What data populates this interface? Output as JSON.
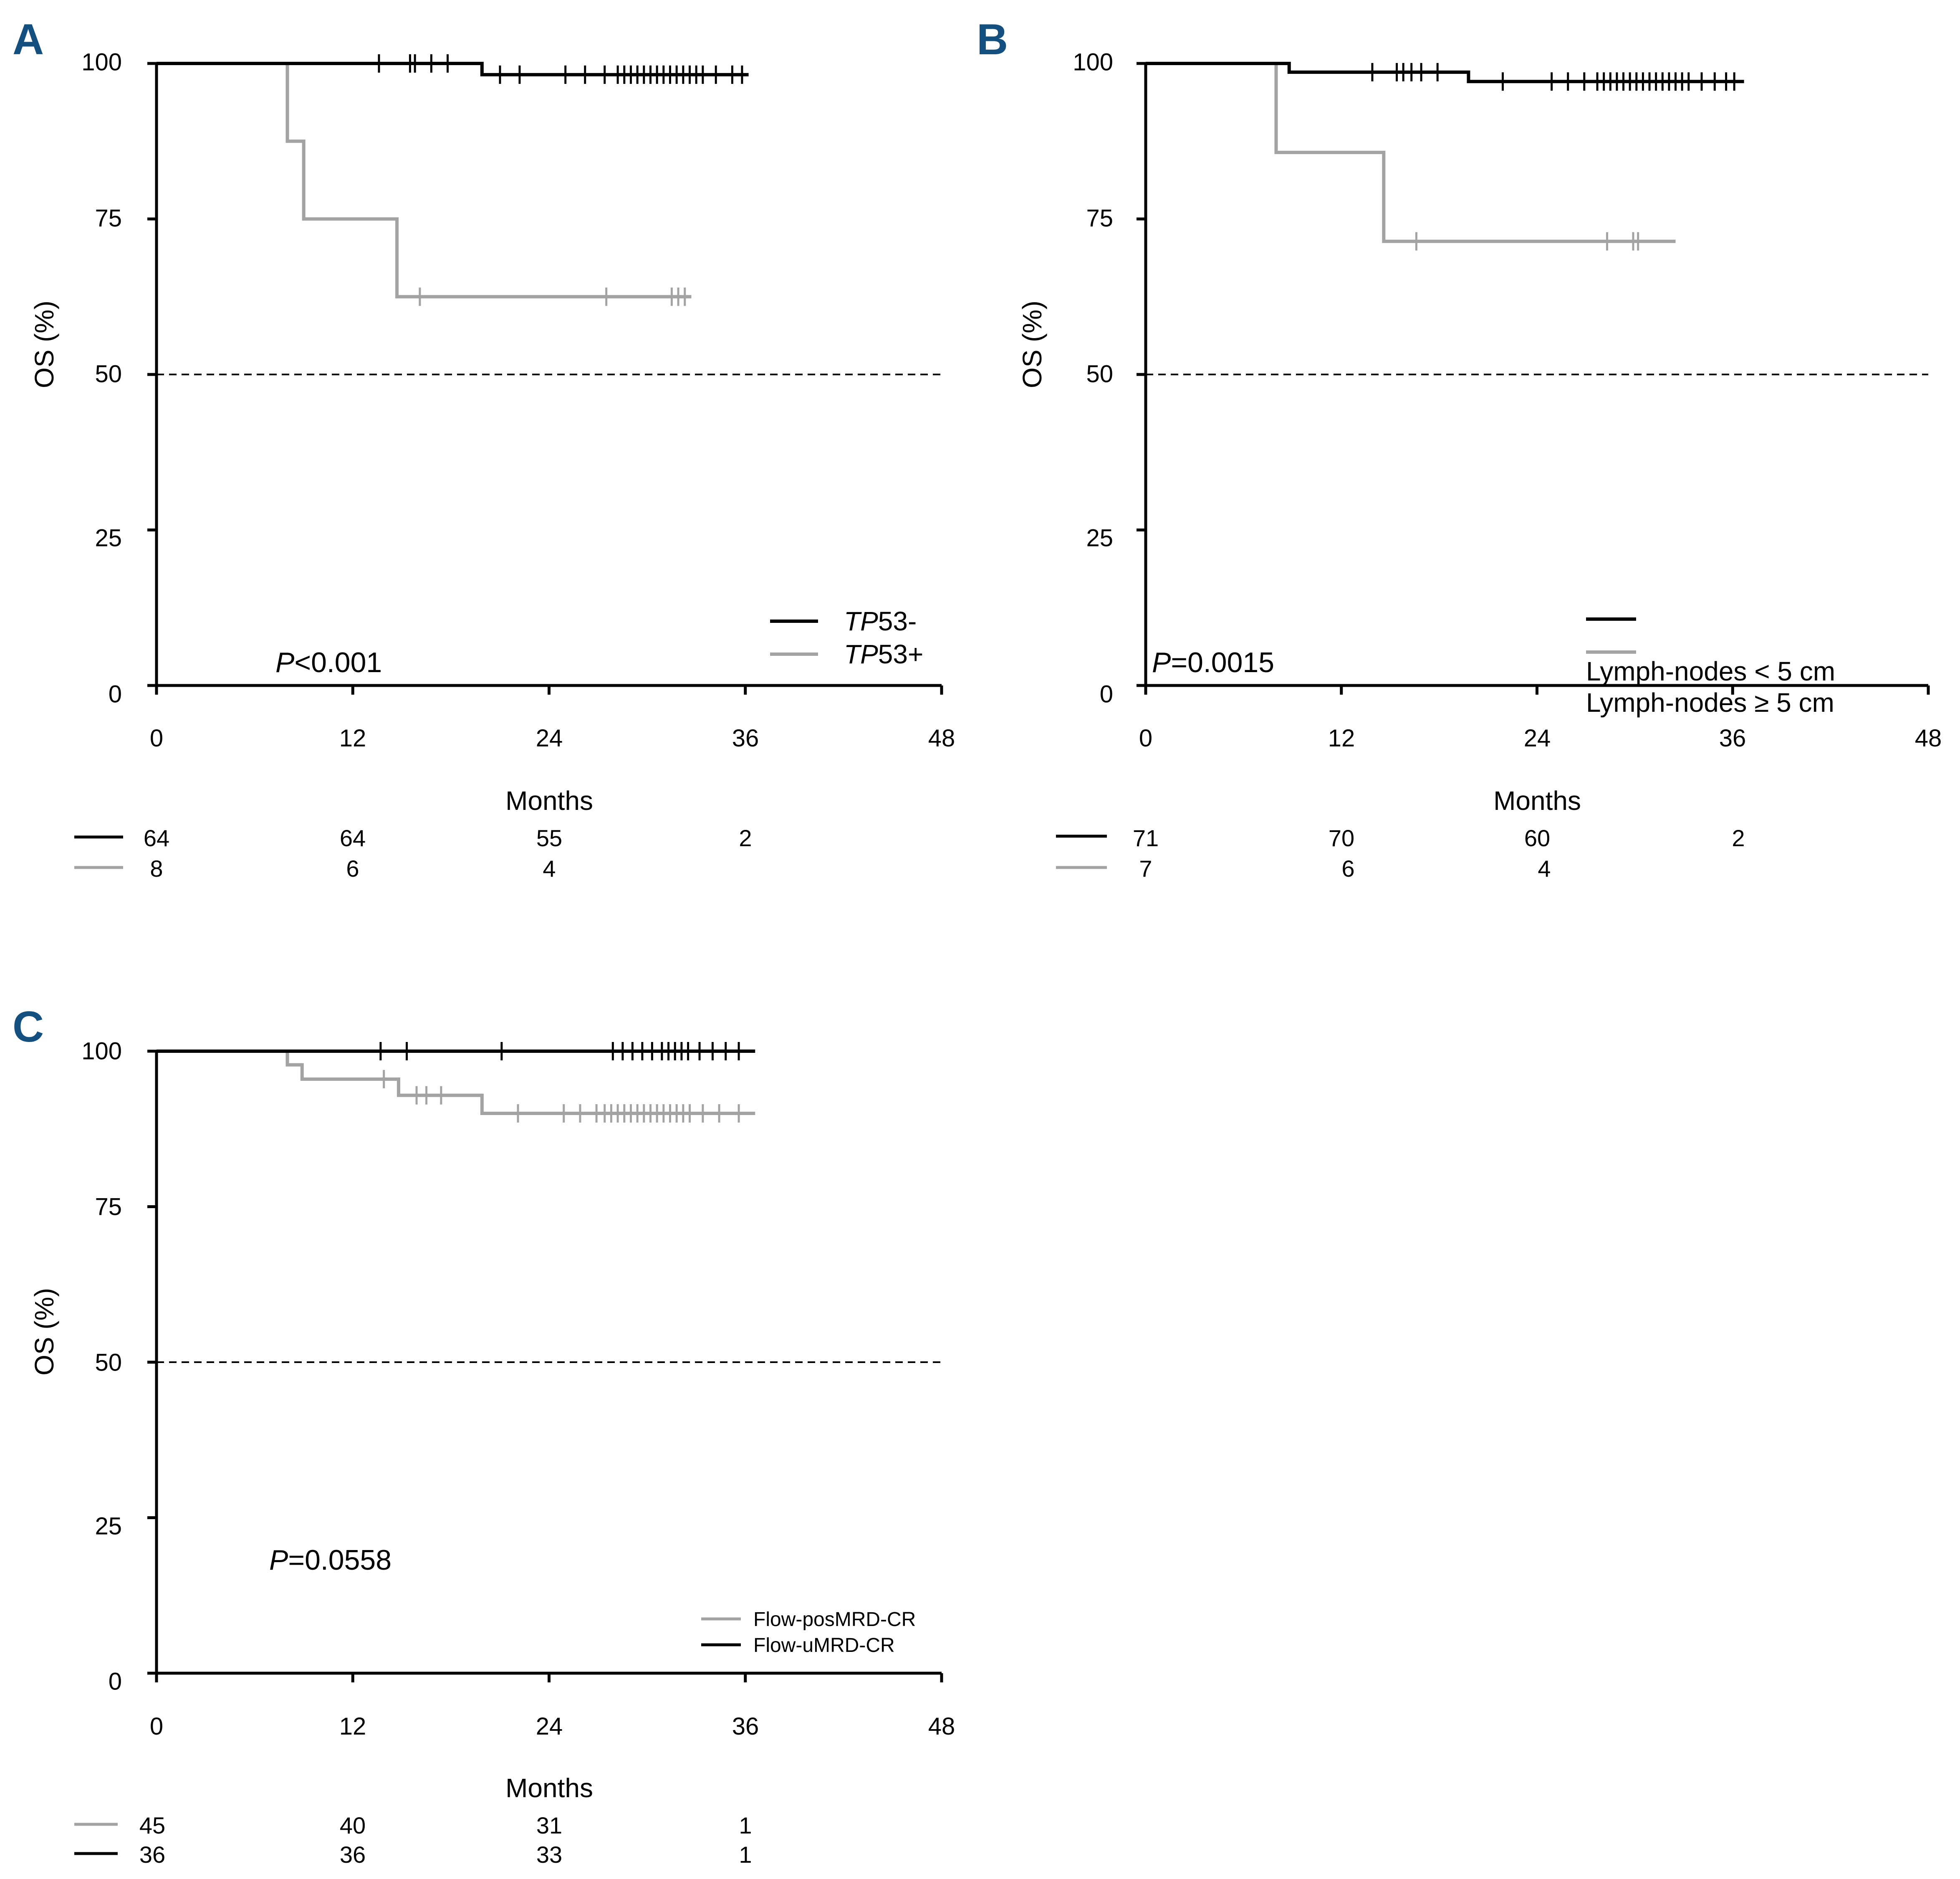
{
  "colors": {
    "black_curve": "#000000",
    "gray_curve": "#a3a3a3",
    "panel_label": "#14507f"
  },
  "axes": {
    "y_title": "OS (%)",
    "x_title": "Months",
    "y_ticks": [
      "0",
      "25",
      "50",
      "75",
      "100"
    ],
    "x_ticks": [
      "0",
      "12",
      "24",
      "36",
      "48"
    ]
  },
  "chart_data": [
    {
      "panel": "A",
      "type": "line",
      "subtype": "kaplan-meier",
      "title": "",
      "xlabel": "Months",
      "ylabel": "OS (%)",
      "xlim": [
        0,
        48
      ],
      "ylim": [
        0,
        100
      ],
      "x_ticks": [
        0,
        12,
        24,
        36,
        48
      ],
      "y_ticks": [
        0,
        25,
        50,
        75,
        100
      ],
      "reference_line_y": 50,
      "legend_position": "bottom-right",
      "p_value": {
        "prefix": "P",
        "text": "<0.001"
      },
      "series": [
        {
          "name_italic": "TP",
          "name_rest": "53-",
          "color": "#000000",
          "steps": [
            [
              0,
              100
            ],
            [
              19.9,
              98.2
            ],
            [
              36.2,
              98.2
            ]
          ],
          "censored": [
            13.6,
            15.5,
            15.8,
            16.8,
            17.8,
            21,
            22.2,
            25,
            26.2,
            27.4,
            28.2,
            28.6,
            29,
            29.4,
            29.8,
            30.2,
            30.6,
            31,
            31.4,
            31.8,
            32.2,
            32.6,
            33,
            33.4,
            34.2,
            35.2,
            35.8
          ]
        },
        {
          "name_italic": "TP",
          "name_rest": "53+",
          "color": "#a3a3a3",
          "steps": [
            [
              0,
              100
            ],
            [
              8,
              87.5
            ],
            [
              9,
              75
            ],
            [
              14.7,
              62.5
            ],
            [
              32.7,
              62.5
            ]
          ],
          "censored": [
            16.1,
            27.5,
            31.5,
            31.9,
            32.3
          ]
        }
      ],
      "risk_table": {
        "times": [
          0,
          12,
          24,
          36
        ],
        "rows": [
          {
            "series": 0,
            "counts": [
              "64",
              "64",
              "55",
              "2"
            ]
          },
          {
            "series": 1,
            "counts": [
              "8",
              "6",
              "4",
              ""
            ]
          }
        ]
      }
    },
    {
      "panel": "B",
      "type": "line",
      "subtype": "kaplan-meier",
      "title": "",
      "xlabel": "Months",
      "ylabel": "OS (%)",
      "xlim": [
        0,
        48
      ],
      "ylim": [
        0,
        100
      ],
      "x_ticks": [
        0,
        12,
        24,
        36,
        48
      ],
      "y_ticks": [
        0,
        25,
        50,
        75,
        100
      ],
      "reference_line_y": 50,
      "legend_position": "bottom-right",
      "p_value": {
        "prefix": "P",
        "text": "=0.0015"
      },
      "series": [
        {
          "name": "Lymph-nodes < 5 cm",
          "color": "#000000",
          "steps": [
            [
              0,
              100
            ],
            [
              8.8,
              98.6
            ],
            [
              19.8,
              97.1
            ],
            [
              36.7,
              97.1
            ]
          ],
          "censored": [
            13.9,
            15.4,
            15.8,
            16.3,
            16.9,
            17.9,
            21.9,
            24.9,
            25.9,
            26.9,
            27.7,
            28.1,
            28.5,
            28.9,
            29.3,
            29.7,
            30.1,
            30.5,
            30.9,
            31.3,
            31.7,
            32.1,
            32.5,
            32.9,
            33.3,
            34.1,
            34.9,
            35.6,
            36.1
          ]
        },
        {
          "name": "Lymph-nodes ≥ 5 cm",
          "color": "#a3a3a3",
          "steps": [
            [
              0,
              100
            ],
            [
              8,
              85.7
            ],
            [
              14.6,
              71.4
            ],
            [
              32.5,
              71.4
            ]
          ],
          "censored": [
            16.6,
            28.3,
            29.9,
            30.2
          ]
        }
      ],
      "risk_table": {
        "times": [
          0,
          12,
          24,
          36
        ],
        "rows": [
          {
            "series": 0,
            "counts": [
              "71",
              "70",
              "60",
              "2"
            ]
          },
          {
            "series": 1,
            "counts": [
              "7",
              "6",
              "4",
              ""
            ]
          }
        ]
      }
    },
    {
      "panel": "C",
      "type": "line",
      "subtype": "kaplan-meier",
      "title": "",
      "xlabel": "Months",
      "ylabel": "OS (%)",
      "xlim": [
        0,
        48
      ],
      "ylim": [
        0,
        100
      ],
      "x_ticks": [
        0,
        12,
        24,
        36,
        48
      ],
      "y_ticks": [
        0,
        25,
        50,
        75,
        100
      ],
      "reference_line_y": 50,
      "legend_position": "bottom-right",
      "p_value": {
        "prefix": "P",
        "text": "=0.0558"
      },
      "series": [
        {
          "name": "Flow-posMRD-CR",
          "color": "#a3a3a3",
          "steps": [
            [
              0,
              100
            ],
            [
              8,
              97.8
            ],
            [
              8.9,
              95.5
            ],
            [
              14.8,
              92.9
            ],
            [
              19.9,
              90
            ],
            [
              36.6,
              90
            ]
          ],
          "censored": [
            13.9,
            15.9,
            16.5,
            17.4,
            22.1,
            24.9,
            25.9,
            26.9,
            27.4,
            27.8,
            28.2,
            28.6,
            29,
            29.4,
            29.8,
            30.2,
            30.6,
            31,
            31.4,
            31.8,
            32.2,
            32.6,
            33.4,
            34.4,
            35.6
          ]
        },
        {
          "name": "Flow-uMRD-CR",
          "color": "#000000",
          "steps": [
            [
              0,
              100
            ],
            [
              36.6,
              100
            ]
          ],
          "censored": [
            13.7,
            15.3,
            21.1,
            27.9,
            28.5,
            29.1,
            29.7,
            30.3,
            30.9,
            31.3,
            31.7,
            32.1,
            32.5,
            33.2,
            34,
            34.8,
            35.6
          ]
        }
      ],
      "risk_table": {
        "times": [
          0,
          12,
          24,
          36
        ],
        "rows": [
          {
            "series": 0,
            "counts": [
              "45",
              "40",
              "31",
              "1"
            ]
          },
          {
            "series": 1,
            "counts": [
              "36",
              "36",
              "33",
              "1"
            ]
          }
        ]
      }
    }
  ]
}
